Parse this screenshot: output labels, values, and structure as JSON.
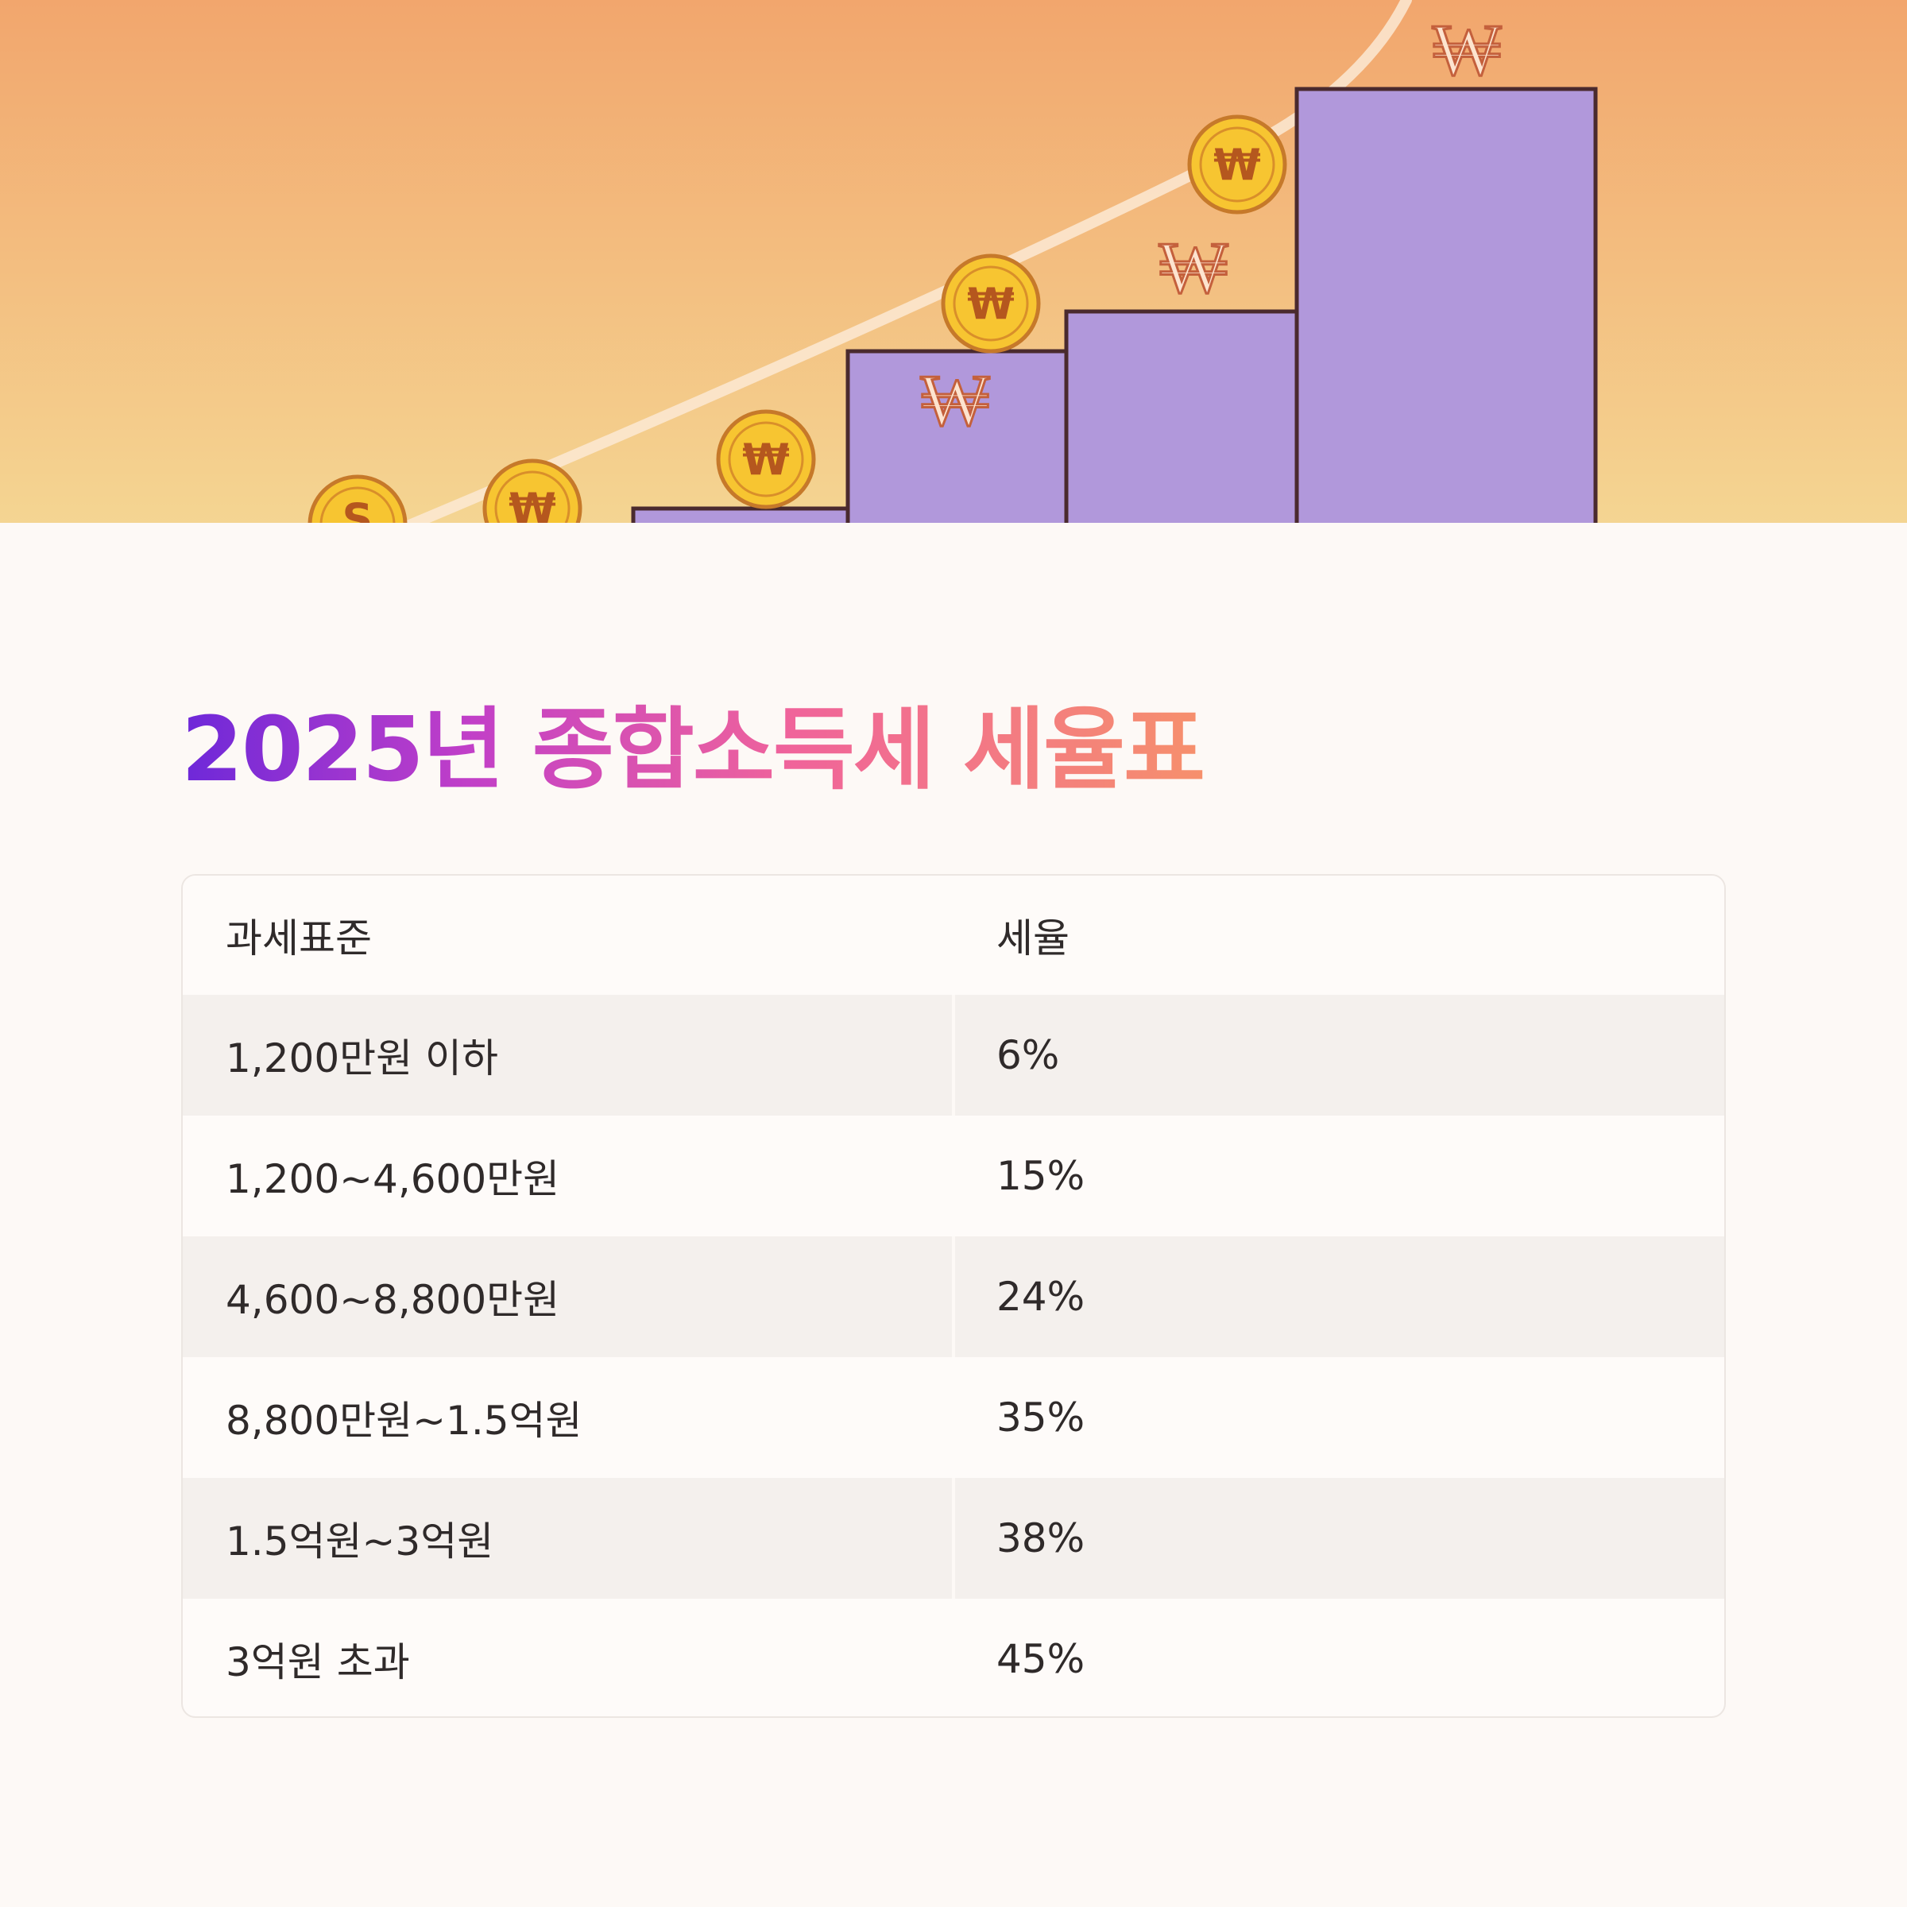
{
  "colors": {
    "sky_top": "#f2a66d",
    "sky_bottom": "#f4d592",
    "bar_fill_top": "#fbb591",
    "bar_fill_bottom": "#b198db",
    "bar_outline": "#4a2a2e",
    "coin_fill": "#f7c531",
    "coin_outline": "#c6792a",
    "title_gradient": [
      "#6d28d9",
      "#c13fc8",
      "#f0649a",
      "#f6906c"
    ],
    "row_shade": "#f4f0ed",
    "text": "#2f2a2a"
  },
  "hero": {
    "icons": [
      "won-coin-icon",
      "won-sign-icon",
      "dollar-coin-icon",
      "growth-arc"
    ],
    "coin_symbol": "₩",
    "dollar_symbol": "S"
  },
  "title": "2025년 종합소득세 세율표",
  "table": {
    "headers": [
      "과세표준",
      "세율"
    ],
    "rows": [
      {
        "bracket": "1,200만원 이하",
        "rate": "6%"
      },
      {
        "bracket": "1,200~4,600만원",
        "rate": "15%"
      },
      {
        "bracket": "4,600~8,800만원",
        "rate": "24%"
      },
      {
        "bracket": "8,800만원~1.5억원",
        "rate": "35%"
      },
      {
        "bracket": "1.5억원~3억원",
        "rate": "38%"
      },
      {
        "bracket": "3억원 초과",
        "rate": "45%"
      }
    ]
  }
}
